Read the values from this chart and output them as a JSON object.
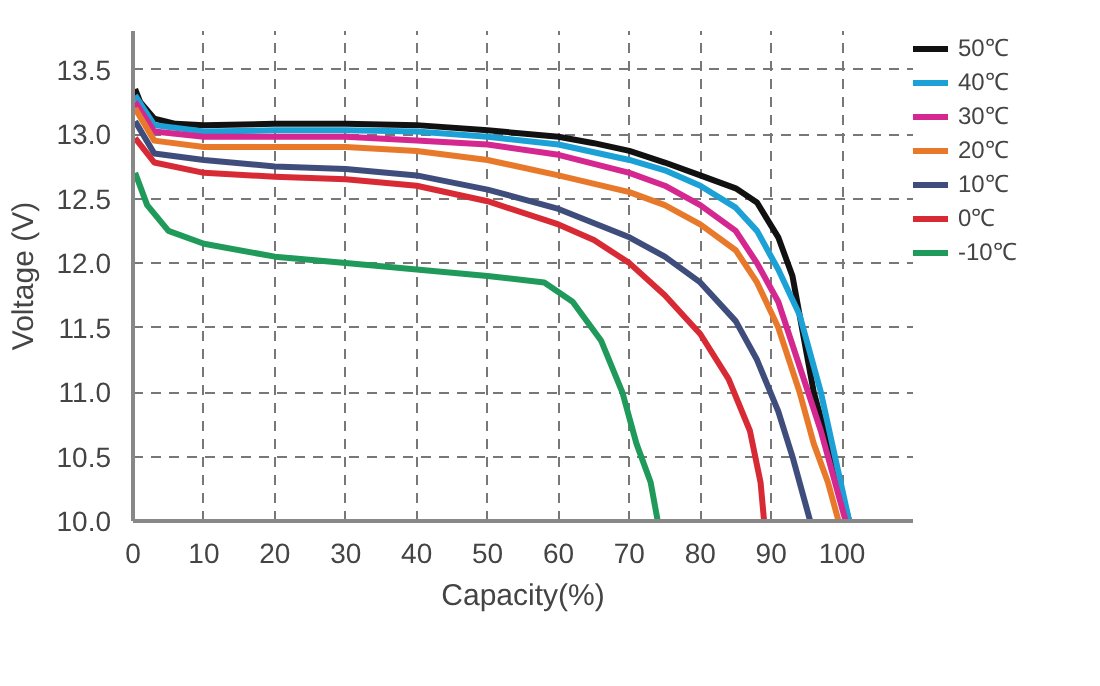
{
  "chart_data": {
    "type": "line",
    "xlabel": "Capacity(%)",
    "ylabel": "Voltage (V)",
    "xlim": [
      0,
      110
    ],
    "ylim": [
      10,
      13.8
    ],
    "xticks": [
      0,
      10,
      20,
      30,
      40,
      50,
      60,
      70,
      80,
      90,
      100
    ],
    "yticks": [
      {
        "value": 10,
        "label": "10.0"
      },
      {
        "value": 10.5,
        "label": "10.5"
      },
      {
        "value": 11,
        "label": "11.0"
      },
      {
        "value": 11.5,
        "label": "11.5"
      },
      {
        "value": 12,
        "label": "12.0"
      },
      {
        "value": 12.5,
        "label": "12.5"
      },
      {
        "value": 13,
        "label": "13.0"
      },
      {
        "value": 13.5,
        "label": "13.5"
      }
    ],
    "grid": true,
    "legend": "top right",
    "marker": "none",
    "line_style": "solid",
    "series": [
      {
        "name": "50℃",
        "color": "#111111",
        "x": [
          0.3,
          1,
          3,
          6,
          10,
          20,
          30,
          40,
          50,
          60,
          65,
          70,
          75,
          80,
          85,
          88,
          91,
          93,
          95,
          96,
          98,
          101
        ],
        "values": [
          13.35,
          13.25,
          13.12,
          13.08,
          13.07,
          13.08,
          13.08,
          13.07,
          13.03,
          12.98,
          12.93,
          12.87,
          12.78,
          12.68,
          12.58,
          12.47,
          12.2,
          11.9,
          11.3,
          11.0,
          10.6,
          10.0
        ]
      },
      {
        "name": "40℃",
        "color": "#1ba1d6",
        "x": [
          0.3,
          3,
          10,
          20,
          30,
          40,
          50,
          60,
          70,
          75,
          80,
          85,
          88,
          91,
          94,
          97,
          99,
          101
        ],
        "values": [
          13.3,
          13.07,
          13.02,
          13.03,
          13.03,
          13.02,
          12.98,
          12.92,
          12.8,
          12.72,
          12.6,
          12.43,
          12.25,
          11.95,
          11.6,
          11.0,
          10.5,
          10.0
        ]
      },
      {
        "name": "30℃",
        "color": "#d4278f",
        "x": [
          0.3,
          3,
          10,
          30,
          40,
          50,
          60,
          70,
          75,
          80,
          85,
          88,
          91,
          94,
          97,
          99,
          100.5
        ],
        "values": [
          13.25,
          13.02,
          12.98,
          12.98,
          12.95,
          12.92,
          12.84,
          12.7,
          12.6,
          12.45,
          12.25,
          12.0,
          11.7,
          11.2,
          10.7,
          10.3,
          10.0
        ]
      },
      {
        "name": "20℃",
        "color": "#e8792a",
        "x": [
          0.3,
          3,
          10,
          30,
          40,
          50,
          60,
          70,
          75,
          80,
          85,
          88,
          91,
          94,
          96,
          98,
          99.5
        ],
        "values": [
          13.2,
          12.95,
          12.9,
          12.9,
          12.87,
          12.8,
          12.68,
          12.55,
          12.45,
          12.3,
          12.1,
          11.85,
          11.5,
          11.0,
          10.6,
          10.3,
          10.0
        ]
      },
      {
        "name": "10℃",
        "color": "#3f4d7c",
        "x": [
          0.3,
          3,
          10,
          20,
          30,
          40,
          50,
          60,
          70,
          75,
          80,
          85,
          88,
          91,
          93,
          95,
          95.5
        ],
        "values": [
          13.1,
          12.85,
          12.8,
          12.75,
          12.73,
          12.68,
          12.57,
          12.42,
          12.2,
          12.05,
          11.85,
          11.55,
          11.25,
          10.85,
          10.5,
          10.1,
          10.0
        ]
      },
      {
        "name": "0℃",
        "color": "#d82a34",
        "x": [
          0.3,
          3,
          10,
          20,
          30,
          40,
          50,
          60,
          65,
          70,
          75,
          80,
          84,
          87,
          88.5,
          89
        ],
        "values": [
          12.97,
          12.78,
          12.7,
          12.67,
          12.65,
          12.6,
          12.48,
          12.3,
          12.18,
          12.0,
          11.75,
          11.45,
          11.1,
          10.7,
          10.3,
          10.0
        ]
      },
      {
        "name": "-10℃",
        "color": "#1f9a5a",
        "x": [
          0.3,
          2,
          5,
          10,
          20,
          30,
          40,
          50,
          58,
          62,
          66,
          69,
          71,
          73,
          74
        ],
        "values": [
          12.7,
          12.45,
          12.25,
          12.15,
          12.05,
          12.0,
          11.95,
          11.9,
          11.85,
          11.7,
          11.4,
          11.0,
          10.6,
          10.3,
          10.0
        ]
      }
    ]
  }
}
